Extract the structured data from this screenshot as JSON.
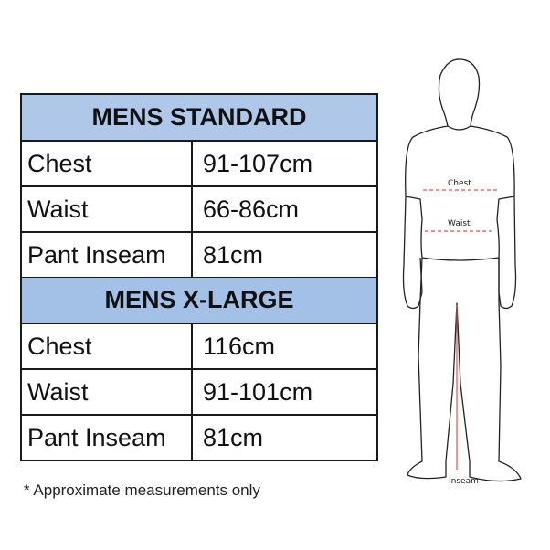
{
  "tables": [
    {
      "title": "MENS STANDARD",
      "rows": [
        {
          "label": "Chest",
          "value": "91-107cm"
        },
        {
          "label": "Waist",
          "value": "66-86cm"
        },
        {
          "label": "Pant Inseam",
          "value": "81cm"
        }
      ]
    },
    {
      "title": "MENS X-LARGE",
      "rows": [
        {
          "label": "Chest",
          "value": "116cm"
        },
        {
          "label": "Waist",
          "value": "91-101cm"
        },
        {
          "label": "Pant Inseam",
          "value": "81cm"
        }
      ]
    }
  ],
  "note": "* Approximate measurements only",
  "figure": {
    "chest_label": "Chest",
    "waist_label": "Waist",
    "inseam_label": "Inseam"
  },
  "colors": {
    "header_blue": "#afc8e9",
    "header_blue_2": "#a3c0e6",
    "measure_line": "#d9534f"
  }
}
